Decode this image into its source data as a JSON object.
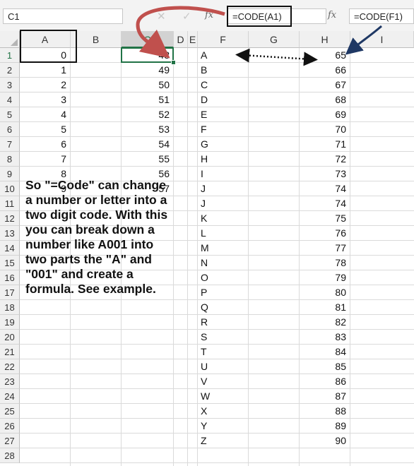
{
  "formula_bar": {
    "name_box": "C1",
    "cancel_icon": "✕",
    "enter_icon": "✓",
    "fx_label": "fx",
    "formula_1": "=CODE(A1)",
    "formula_2": "=CODE(F1)"
  },
  "columns": [
    "A",
    "B",
    "C",
    "D",
    "E",
    "F",
    "G",
    "H",
    "I"
  ],
  "rows": [
    "1",
    "2",
    "3",
    "4",
    "5",
    "6",
    "7",
    "8",
    "9",
    "10",
    "11",
    "12",
    "13",
    "14",
    "15",
    "16",
    "17",
    "18",
    "19",
    "20",
    "21",
    "22",
    "23",
    "24",
    "25",
    "26",
    "27",
    "28"
  ],
  "col_a_values": [
    "0",
    "1",
    "2",
    "3",
    "4",
    "5",
    "6",
    "7",
    "8",
    "9"
  ],
  "col_c_values": [
    "48",
    "49",
    "50",
    "51",
    "52",
    "53",
    "54",
    "55",
    "56",
    "57"
  ],
  "col_f_values": [
    "A",
    "B",
    "C",
    "D",
    "E",
    "F",
    "G",
    "H",
    "I",
    "J",
    "J",
    "K",
    "L",
    "M",
    "N",
    "O",
    "P",
    "Q",
    "R",
    "S",
    "T",
    "U",
    "V",
    "W",
    "X",
    "Y",
    "Z"
  ],
  "col_h_values": [
    "65",
    "66",
    "67",
    "68",
    "69",
    "70",
    "71",
    "72",
    "73",
    "74",
    "74",
    "75",
    "76",
    "77",
    "78",
    "79",
    "80",
    "81",
    "82",
    "83",
    "84",
    "85",
    "86",
    "87",
    "88",
    "89",
    "90"
  ],
  "note_lines": [
    "So \"=Code\" can change",
    "a number or letter into a",
    "two digit code. With this",
    "you can break down a",
    "number like A001 into",
    "two parts the \"A\" and",
    "\"001\" and create a",
    "formula. See example."
  ],
  "colors": {
    "accent": "#217346",
    "arrow_red": "#c0504d",
    "arrow_navy": "#1f3864"
  }
}
